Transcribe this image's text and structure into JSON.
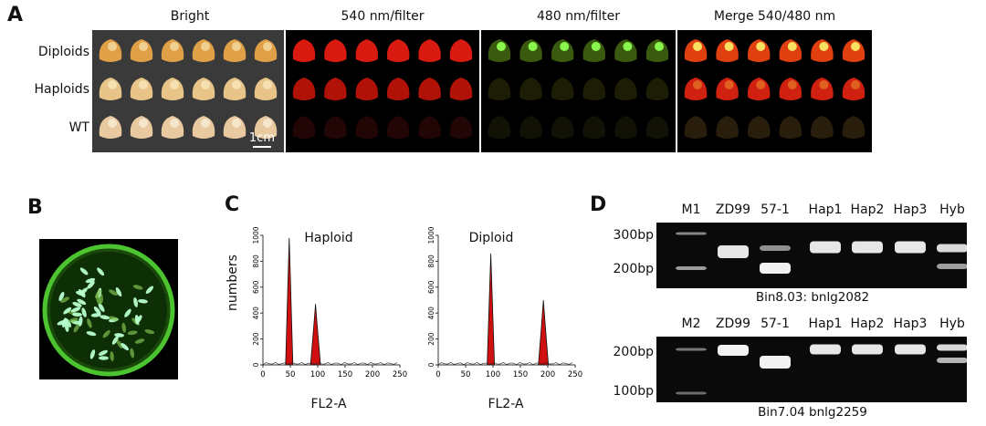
{
  "panel_labels": {
    "a": "A",
    "b": "B",
    "c": "C",
    "d": "D"
  },
  "panel_a": {
    "titles": [
      "Bright",
      "540 nm/filter",
      "480 nm/filter",
      "Merge 540/480 nm"
    ],
    "rows": [
      "Diploids",
      "Haploids",
      "WT"
    ],
    "scale_bar": "1cm"
  },
  "panel_c": {
    "ylabel": "numbers",
    "charts": [
      {
        "title": "Haploid",
        "xlabel": "FL2-A"
      },
      {
        "title": "Diploid",
        "xlabel": "FL2-A"
      }
    ]
  },
  "chart_data": [
    {
      "type": "area",
      "title": "Haploid",
      "xlabel": "FL2-A",
      "ylabel": "numbers",
      "xlim": [
        0,
        250
      ],
      "ylim": [
        0,
        1000
      ],
      "xticks": [
        "0",
        "50",
        "100",
        "150",
        "200",
        "250"
      ],
      "yticks": [
        "0",
        "200",
        "400",
        "600",
        "800",
        "1000"
      ],
      "peaks": [
        {
          "x": 48,
          "y": 980
        },
        {
          "x": 96,
          "y": 470
        }
      ],
      "fill_color": "#d01010"
    },
    {
      "type": "area",
      "title": "Diploid",
      "xlabel": "FL2-A",
      "ylabel": "numbers",
      "xlim": [
        0,
        250
      ],
      "ylim": [
        0,
        1000
      ],
      "xticks": [
        "0",
        "50",
        "100",
        "150",
        "200",
        "250"
      ],
      "yticks": [
        "0",
        "200",
        "400",
        "600",
        "800",
        "1000"
      ],
      "peaks": [
        {
          "x": 96,
          "y": 860
        },
        {
          "x": 192,
          "y": 500
        }
      ],
      "fill_color": "#d01010"
    }
  ],
  "panel_d": {
    "gel1": {
      "lanes": [
        "M1",
        "ZD99",
        "57-1",
        "Hap1",
        "Hap2",
        "Hap3",
        "Hyb"
      ],
      "markers": [
        "300bp",
        "200bp"
      ],
      "caption": "Bin8.03: bnlg2082"
    },
    "gel2": {
      "lanes": [
        "M2",
        "ZD99",
        "57-1",
        "Hap1",
        "Hap2",
        "Hap3",
        "Hyb"
      ],
      "markers": [
        "200bp",
        "100bp"
      ],
      "caption": "Bin7.04 bnlg2259"
    }
  }
}
